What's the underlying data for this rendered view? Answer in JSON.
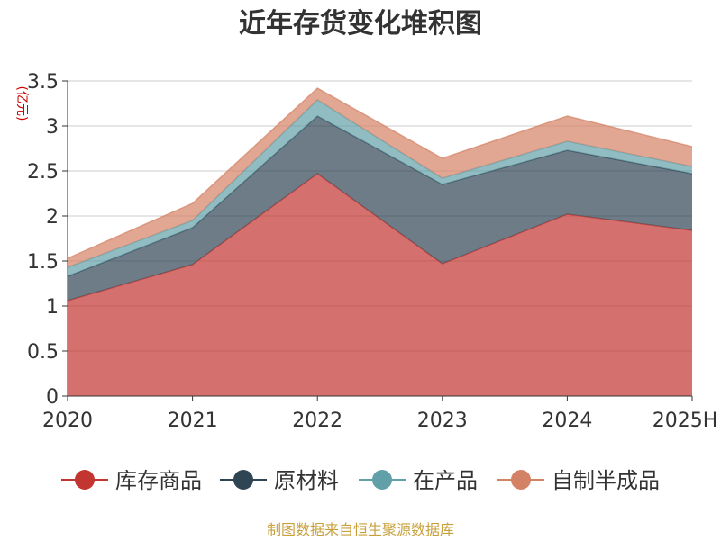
{
  "chart_data": {
    "type": "area",
    "stacked": true,
    "title": "近年存货变化堆积图",
    "ylabel": "(亿元)",
    "categories": [
      "2020",
      "2021",
      "2022",
      "2023",
      "2024",
      "2025H"
    ],
    "ylim": [
      0,
      3.5
    ],
    "yticks": [
      "0",
      "0.5",
      "1",
      "1.5",
      "2",
      "2.5",
      "3",
      "3.5"
    ],
    "grid": true,
    "legend_position": "bottom",
    "series": [
      {
        "name": "库存商品",
        "color": "#c23531",
        "values": [
          1.06,
          1.46,
          2.47,
          1.47,
          2.02,
          1.84
        ]
      },
      {
        "name": "原材料",
        "color": "#2f4554",
        "values": [
          0.27,
          0.41,
          0.64,
          0.88,
          0.71,
          0.63
        ]
      },
      {
        "name": "在产品",
        "color": "#61a0a8",
        "values": [
          0.1,
          0.08,
          0.18,
          0.07,
          0.1,
          0.08
        ]
      },
      {
        "name": "自制半成品",
        "color": "#d48265",
        "values": [
          0.1,
          0.19,
          0.13,
          0.22,
          0.28,
          0.22
        ]
      }
    ]
  },
  "footer": {
    "source": "制图数据来自恒生聚源数据库"
  }
}
